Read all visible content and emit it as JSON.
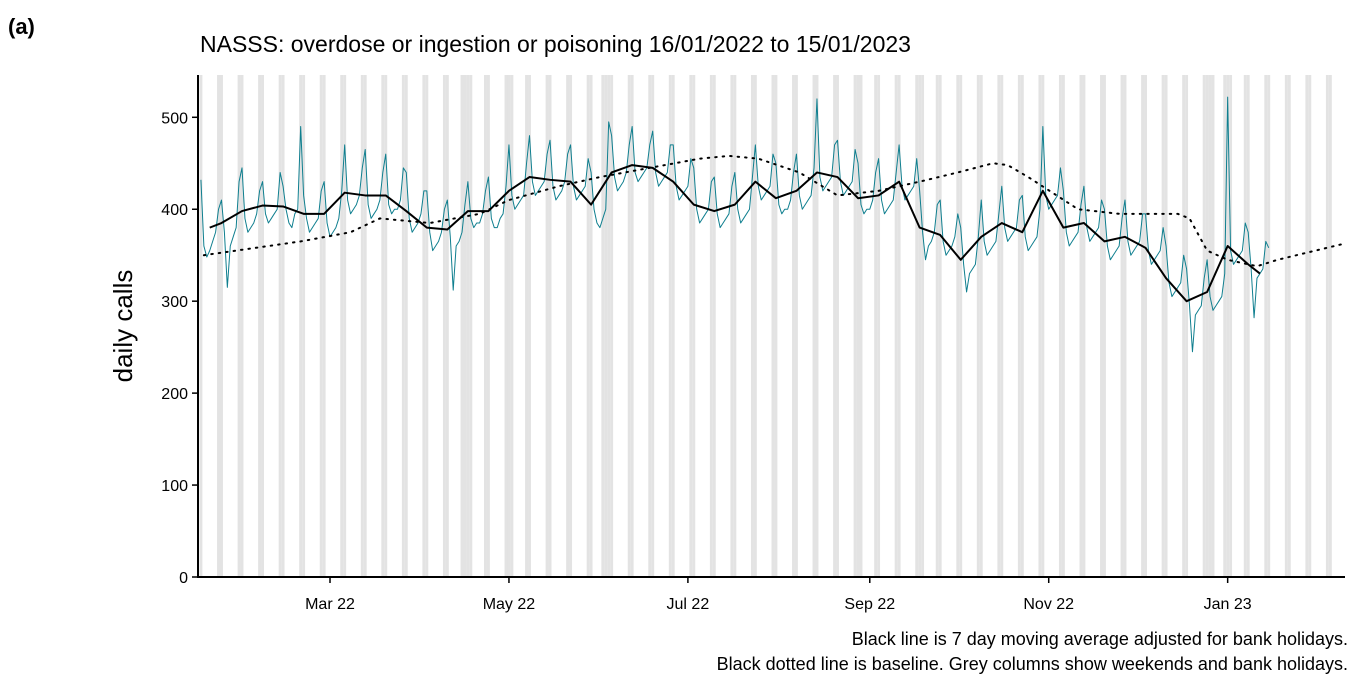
{
  "panel_label": "(a)",
  "captions": [
    "Black line is 7 day moving average adjusted for bank holidays.",
    "Black dotted line is baseline. Grey columns show weekends and bank holidays."
  ],
  "chart_data": {
    "type": "line",
    "title": "NASSS: overdose or ingestion or poisoning 16/01/2022 to 15/01/2023",
    "y_label": "daily calls",
    "xlim": [
      -1,
      390
    ],
    "ylim": [
      0,
      546
    ],
    "yticks": [
      0,
      100,
      200,
      300,
      400,
      500
    ],
    "xticks": [
      {
        "value": 44,
        "label": "Mar 22"
      },
      {
        "value": 105,
        "label": "May 22"
      },
      {
        "value": 166,
        "label": "Jul 22"
      },
      {
        "value": 228,
        "label": "Sep 22"
      },
      {
        "value": 289,
        "label": "Nov 22"
      },
      {
        "value": 350,
        "label": "Jan 23"
      }
    ],
    "shade_color": "#e3e3e3",
    "shaded_days": [
      0,
      6,
      7,
      13,
      14,
      20,
      21,
      27,
      28,
      34,
      35,
      41,
      42,
      48,
      49,
      55,
      56,
      62,
      63,
      69,
      70,
      76,
      77,
      83,
      84,
      89,
      90,
      91,
      92,
      97,
      98,
      104,
      105,
      106,
      111,
      112,
      118,
      119,
      125,
      126,
      132,
      133,
      137,
      138,
      139,
      140,
      146,
      147,
      153,
      154,
      160,
      161,
      167,
      168,
      174,
      175,
      181,
      182,
      188,
      189,
      195,
      196,
      202,
      203,
      209,
      210,
      216,
      217,
      223,
      224,
      225,
      230,
      231,
      237,
      238,
      244,
      245,
      246,
      251,
      252,
      258,
      259,
      265,
      266,
      272,
      273,
      279,
      280,
      286,
      287,
      293,
      294,
      300,
      301,
      307,
      308,
      314,
      315,
      321,
      322,
      328,
      329,
      335,
      336,
      342,
      343,
      344,
      345,
      349,
      350,
      351,
      356,
      357,
      363,
      364,
      370,
      371,
      377,
      378,
      384,
      385
    ],
    "series": [
      {
        "color": "#0f7f8f",
        "width": 1,
        "style": "solid",
        "x": [
          0,
          1,
          2,
          3,
          4,
          5,
          6,
          7,
          8,
          9,
          10,
          11,
          12,
          13,
          14,
          15,
          16,
          17,
          18,
          19,
          20,
          21,
          22,
          23,
          24,
          25,
          26,
          27,
          28,
          29,
          30,
          31,
          32,
          33,
          34,
          35,
          36,
          37,
          38,
          39,
          40,
          41,
          42,
          43,
          44,
          45,
          46,
          47,
          48,
          49,
          50,
          51,
          52,
          53,
          54,
          55,
          56,
          57,
          58,
          59,
          60,
          61,
          62,
          63,
          64,
          65,
          66,
          67,
          68,
          69,
          70,
          71,
          72,
          73,
          74,
          75,
          76,
          77,
          78,
          79,
          80,
          81,
          82,
          83,
          84,
          85,
          86,
          87,
          88,
          89,
          90,
          91,
          92,
          93,
          94,
          95,
          96,
          97,
          98,
          99,
          100,
          101,
          102,
          103,
          104,
          105,
          106,
          107,
          108,
          109,
          110,
          111,
          112,
          113,
          114,
          115,
          116,
          117,
          118,
          119,
          120,
          121,
          122,
          123,
          124,
          125,
          126,
          127,
          128,
          129,
          130,
          131,
          132,
          133,
          134,
          135,
          136,
          137,
          138,
          139,
          140,
          141,
          142,
          143,
          144,
          145,
          146,
          147,
          148,
          149,
          150,
          151,
          152,
          153,
          154,
          155,
          156,
          157,
          158,
          159,
          160,
          161,
          162,
          163,
          164,
          165,
          166,
          167,
          168,
          169,
          170,
          171,
          172,
          173,
          174,
          175,
          176,
          177,
          178,
          179,
          180,
          181,
          182,
          183,
          184,
          185,
          186,
          187,
          188,
          189,
          190,
          191,
          192,
          193,
          194,
          195,
          196,
          197,
          198,
          199,
          200,
          201,
          202,
          203,
          204,
          205,
          206,
          207,
          208,
          209,
          210,
          211,
          212,
          213,
          214,
          215,
          216,
          217,
          218,
          219,
          220,
          221,
          222,
          223,
          224,
          225,
          226,
          227,
          228,
          229,
          230,
          231,
          232,
          233,
          234,
          235,
          236,
          237,
          238,
          239,
          240,
          241,
          242,
          243,
          244,
          245,
          246,
          247,
          248,
          249,
          250,
          251,
          252,
          253,
          254,
          255,
          256,
          257,
          258,
          259,
          260,
          261,
          262,
          263,
          264,
          265,
          266,
          267,
          268,
          269,
          270,
          271,
          272,
          273,
          274,
          275,
          276,
          277,
          278,
          279,
          280,
          281,
          282,
          283,
          284,
          285,
          286,
          287,
          288,
          289,
          290,
          291,
          292,
          293,
          294,
          295,
          296,
          297,
          298,
          299,
          300,
          301,
          302,
          303,
          304,
          305,
          306,
          307,
          308,
          309,
          310,
          311,
          312,
          313,
          314,
          315,
          316,
          317,
          318,
          319,
          320,
          321,
          322,
          323,
          324,
          325,
          326,
          327,
          328,
          329,
          330,
          331,
          332,
          333,
          334,
          335,
          336,
          337,
          338,
          339,
          340,
          341,
          342,
          343,
          344,
          345,
          346,
          347,
          348,
          349,
          350,
          351,
          352,
          353,
          354,
          355,
          356,
          357,
          358,
          359,
          360,
          361,
          362,
          363,
          364
        ],
        "values": [
          432,
          360,
          348,
          355,
          365,
          375,
          400,
          410,
          375,
          315,
          360,
          370,
          380,
          430,
          445,
          390,
          375,
          380,
          385,
          395,
          420,
          430,
          395,
          385,
          390,
          395,
          400,
          440,
          425,
          400,
          385,
          380,
          395,
          400,
          490,
          415,
          390,
          375,
          380,
          385,
          390,
          420,
          430,
          385,
          370,
          375,
          380,
          390,
          420,
          470,
          410,
          395,
          400,
          405,
          415,
          445,
          465,
          405,
          390,
          395,
          400,
          410,
          440,
          460,
          405,
          395,
          400,
          400,
          410,
          445,
          440,
          390,
          375,
          380,
          385,
          395,
          420,
          420,
          375,
          355,
          360,
          365,
          375,
          400,
          410,
          370,
          312,
          360,
          365,
          375,
          405,
          430,
          390,
          380,
          385,
          385,
          395,
          420,
          435,
          390,
          380,
          380,
          390,
          395,
          425,
          470,
          415,
          400,
          405,
          410,
          415,
          450,
          480,
          430,
          415,
          420,
          425,
          430,
          460,
          475,
          425,
          410,
          415,
          420,
          430,
          460,
          470,
          425,
          410,
          415,
          420,
          425,
          455,
          440,
          400,
          385,
          380,
          390,
          400,
          495,
          480,
          435,
          420,
          425,
          430,
          440,
          470,
          490,
          440,
          430,
          435,
          440,
          445,
          470,
          485,
          440,
          425,
          430,
          435,
          440,
          470,
          470,
          425,
          410,
          415,
          420,
          425,
          455,
          445,
          400,
          385,
          390,
          395,
          400,
          430,
          435,
          395,
          380,
          385,
          390,
          395,
          425,
          440,
          400,
          385,
          390,
          395,
          400,
          435,
          470,
          425,
          410,
          415,
          420,
          425,
          460,
          450,
          405,
          395,
          400,
          400,
          410,
          440,
          460,
          415,
          400,
          405,
          410,
          415,
          445,
          520,
          435,
          420,
          425,
          430,
          435,
          470,
          475,
          430,
          415,
          420,
          425,
          430,
          465,
          450,
          405,
          395,
          400,
          400,
          410,
          440,
          455,
          410,
          395,
          400,
          405,
          410,
          440,
          470,
          425,
          410,
          415,
          420,
          425,
          455,
          420,
          375,
          345,
          360,
          365,
          375,
          405,
          410,
          365,
          350,
          355,
          360,
          370,
          395,
          380,
          340,
          310,
          330,
          335,
          340,
          370,
          410,
          365,
          350,
          355,
          360,
          365,
          395,
          425,
          380,
          365,
          370,
          375,
          380,
          410,
          415,
          370,
          355,
          360,
          365,
          370,
          400,
          490,
          415,
          400,
          405,
          410,
          415,
          445,
          420,
          375,
          360,
          365,
          370,
          375,
          405,
          425,
          380,
          365,
          370,
          375,
          380,
          410,
          400,
          360,
          345,
          350,
          355,
          360,
          390,
          410,
          365,
          350,
          355,
          360,
          365,
          395,
          395,
          355,
          340,
          345,
          350,
          355,
          380,
          360,
          320,
          305,
          310,
          315,
          320,
          350,
          335,
          295,
          245,
          285,
          290,
          295,
          325,
          345,
          305,
          290,
          295,
          300,
          305,
          330,
          522,
          355,
          340,
          345,
          350,
          355,
          385,
          375,
          335,
          282,
          325,
          330,
          335,
          365,
          358
        ]
      },
      {
        "color": "#000000",
        "width": 2,
        "style": "solid",
        "x": [
          3,
          7,
          14,
          21,
          28,
          35,
          42,
          49,
          56,
          63,
          70,
          77,
          84,
          91,
          98,
          105,
          112,
          119,
          126,
          133,
          140,
          147,
          154,
          161,
          168,
          175,
          182,
          189,
          196,
          203,
          210,
          217,
          224,
          231,
          238,
          245,
          252,
          259,
          266,
          273,
          280,
          287,
          294,
          301,
          308,
          315,
          322,
          329,
          336,
          343,
          350,
          357,
          361
        ],
        "values": [
          380,
          385,
          398,
          404,
          403,
          395,
          395,
          418,
          415,
          415,
          398,
          380,
          378,
          398,
          398,
          420,
          435,
          432,
          430,
          405,
          440,
          448,
          445,
          430,
          405,
          398,
          405,
          430,
          412,
          420,
          440,
          435,
          412,
          415,
          430,
          380,
          372,
          345,
          370,
          385,
          375,
          420,
          380,
          385,
          365,
          370,
          358,
          325,
          300,
          310,
          360,
          340,
          330
        ]
      },
      {
        "color": "#000000",
        "width": 2,
        "style": "dotted",
        "x": [
          1,
          34,
          51,
          61,
          78,
          95,
          105,
          122,
          136,
          153,
          170,
          180,
          190,
          204,
          217,
          231,
          245,
          258,
          270,
          275,
          282,
          299,
          313,
          333,
          337,
          343,
          350,
          360,
          367,
          389
        ],
        "values": [
          350,
          365,
          375,
          390,
          385,
          395,
          410,
          425,
          435,
          445,
          455,
          458,
          455,
          440,
          415,
          420,
          430,
          440,
          450,
          448,
          435,
          400,
          395,
          395,
          390,
          355,
          345,
          338,
          345,
          362
        ]
      }
    ]
  }
}
